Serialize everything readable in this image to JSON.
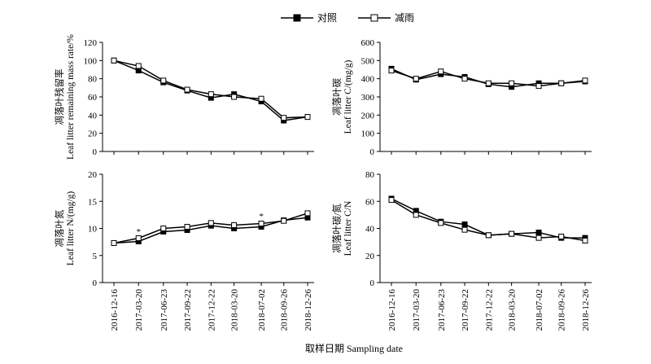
{
  "legend": [
    {
      "label": "对照",
      "marker": "filled-square"
    },
    {
      "label": "减雨",
      "marker": "open-square"
    }
  ],
  "x_axis_title": "取样日期 Sampling date",
  "chart_data": [
    {
      "type": "line",
      "ylabel_cn": "凋落叶残留率",
      "ylabel_en": "Leaf litter remaining mass rate/%",
      "ylim": [
        0,
        120
      ],
      "yticks": [
        0,
        20,
        40,
        60,
        80,
        100,
        120
      ],
      "show_xtick_labels": false,
      "categories": [
        "2016-12-16",
        "2017-03-20",
        "2017-06-23",
        "2017-09-22",
        "2017-12-22",
        "2018-03-20",
        "2018-07-02",
        "2018-09-26",
        "2018-12-26"
      ],
      "x": [
        0,
        94,
        189,
        280,
        371,
        459,
        563,
        649,
        740
      ],
      "series": [
        {
          "name": "对照",
          "values": [
            100,
            89,
            76,
            67,
            59,
            63,
            55,
            34,
            38
          ]
        },
        {
          "name": "减雨",
          "values": [
            100,
            94,
            78,
            68,
            63,
            60,
            58,
            37,
            38
          ]
        }
      ],
      "annotations": []
    },
    {
      "type": "line",
      "ylabel_cn": "凋落叶碳",
      "ylabel_en": "Leaf litter C/(mg/g)",
      "ylim": [
        0,
        600
      ],
      "yticks": [
        0,
        100,
        200,
        300,
        400,
        500,
        600
      ],
      "show_xtick_labels": false,
      "categories": [
        "2016-12-16",
        "2017-03-20",
        "2017-06-23",
        "2017-09-22",
        "2017-12-22",
        "2018-03-20",
        "2018-07-02",
        "2018-09-26",
        "2018-12-26"
      ],
      "x": [
        0,
        94,
        189,
        280,
        371,
        459,
        563,
        649,
        740
      ],
      "series": [
        {
          "name": "对照",
          "values": [
            455,
            395,
            425,
            410,
            370,
            355,
            375,
            375,
            385
          ]
        },
        {
          "name": "减雨",
          "values": [
            445,
            400,
            440,
            400,
            375,
            375,
            360,
            375,
            390
          ]
        }
      ],
      "annotations": []
    },
    {
      "type": "line",
      "ylabel_cn": "凋落叶氮",
      "ylabel_en": "Leaf litter N/(mg/g)",
      "ylim": [
        0,
        20
      ],
      "yticks": [
        0,
        5,
        10,
        15,
        20
      ],
      "show_xtick_labels": true,
      "categories": [
        "2016-12-16",
        "2017-03-20",
        "2017-06-23",
        "2017-09-22",
        "2017-12-22",
        "2018-03-20",
        "2018-07-02",
        "2018-09-26",
        "2018-12-26"
      ],
      "x": [
        0,
        94,
        189,
        280,
        371,
        459,
        563,
        649,
        740
      ],
      "series": [
        {
          "name": "对照",
          "values": [
            7.3,
            7.6,
            9.4,
            9.7,
            10.5,
            10.0,
            10.3,
            11.5,
            12.0
          ]
        },
        {
          "name": "减雨",
          "values": [
            7.3,
            8.2,
            10.0,
            10.3,
            11.0,
            10.6,
            10.9,
            11.4,
            12.8
          ]
        }
      ],
      "annotations": [
        {
          "category": "2017-03-20",
          "text": "*",
          "y": 9.5
        },
        {
          "category": "2018-07-02",
          "text": "*",
          "y": 12.3
        }
      ]
    },
    {
      "type": "line",
      "ylabel_cn": "凋落叶碳/氮",
      "ylabel_en": "Leaf litter C/N",
      "ylim": [
        0,
        80
      ],
      "yticks": [
        0,
        20,
        40,
        60,
        80
      ],
      "show_xtick_labels": true,
      "categories": [
        "2016-12-16",
        "2017-03-20",
        "2017-06-23",
        "2017-09-22",
        "2017-12-22",
        "2018-03-20",
        "2018-07-02",
        "2018-09-26",
        "2018-12-26"
      ],
      "x": [
        0,
        94,
        189,
        280,
        371,
        459,
        563,
        649,
        740
      ],
      "series": [
        {
          "name": "对照",
          "values": [
            62,
            53,
            45,
            43,
            35,
            36,
            37,
            33,
            33
          ]
        },
        {
          "name": "减雨",
          "values": [
            61,
            50,
            44,
            39,
            35,
            36,
            33,
            34,
            31
          ]
        }
      ],
      "annotations": []
    }
  ]
}
